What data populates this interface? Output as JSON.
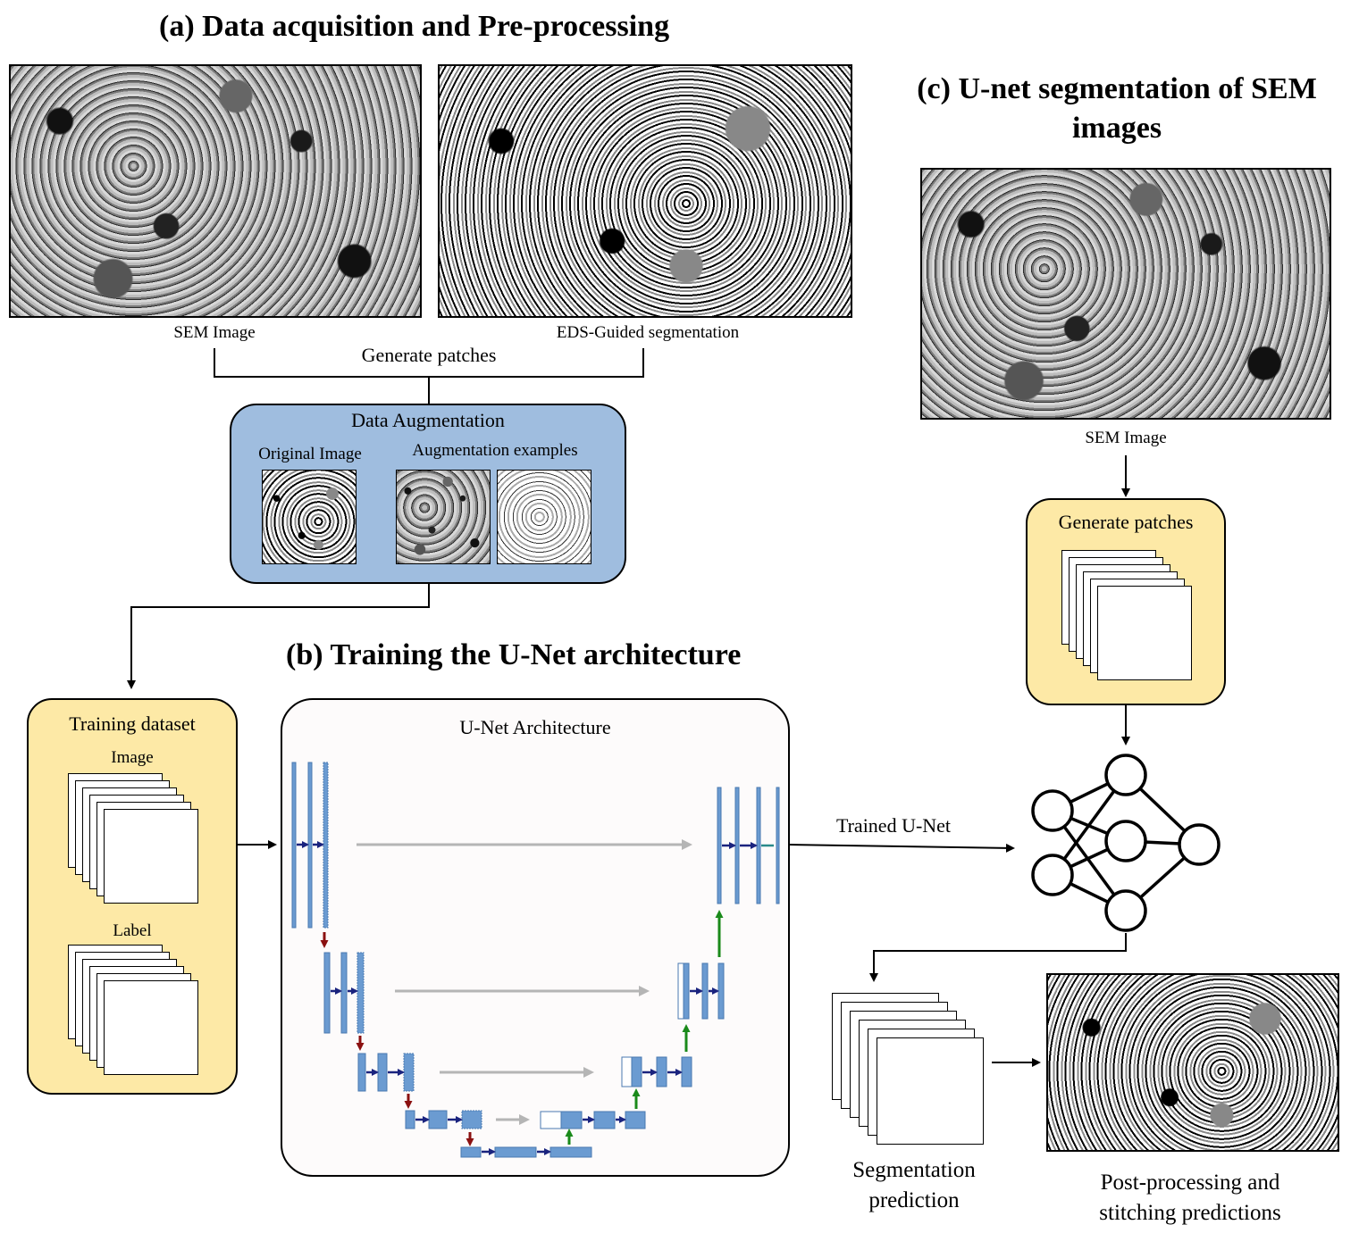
{
  "titles": {
    "a": "(a) Data acquisition and Pre-processing",
    "b": "(b) Training the U-Net architecture",
    "c": "(c) U-net segmentation of SEM images"
  },
  "section_a": {
    "sem_caption": "SEM Image",
    "eds_caption": "EDS-Guided segmentation",
    "generate_patches": "Generate patches",
    "augmentation": {
      "title": "Data Augmentation",
      "original": "Original Image",
      "examples": "Augmentation examples"
    }
  },
  "section_b": {
    "training": {
      "title": "Training dataset",
      "image": "Image",
      "label": "Label"
    },
    "unet_title": "U-Net Architecture",
    "trained": "Trained U-Net"
  },
  "section_c": {
    "sem_caption": "SEM Image",
    "generate_patches": "Generate patches",
    "segmentation": "Segmentation prediction",
    "post": "Post-processing and stitching predictions"
  },
  "colors": {
    "blue_panel": "#9fbddf",
    "yellow_panel": "#fde9a6",
    "unet_block": "#6b9bd1",
    "down_arrow": "#8b1010",
    "up_arrow": "#1a8a1a",
    "conv_arrow": "#1a237e",
    "skip_arrow": "#b5b5b5"
  }
}
